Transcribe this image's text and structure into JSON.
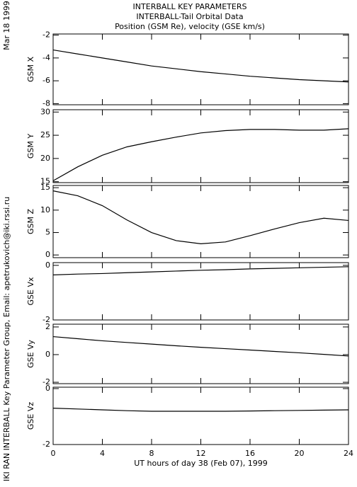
{
  "title_lines": [
    "INTERBALL KEY PARAMETERS",
    "INTERBALL-Tail Orbital Data",
    "Position (GSM Re), velocity (GSE km/s)"
  ],
  "date": "Mar 18 1999",
  "credit": "IKI RAN INTERBALL Key Parameter Group, Email: apetrukovich@iki.rssi.ru",
  "chart_data": [
    {
      "type": "line",
      "ylabel": "GSM X",
      "color": "#000000",
      "x": [
        0,
        2,
        4,
        6,
        8,
        10,
        12,
        14,
        16,
        18,
        20,
        22,
        24
      ],
      "values": [
        -3.3,
        -3.65,
        -4.0,
        -4.35,
        -4.7,
        -4.95,
        -5.2,
        -5.4,
        -5.6,
        -5.75,
        -5.9,
        -6.0,
        -6.1
      ],
      "ylim": [
        -8.1,
        -1.9
      ],
      "yticks": [
        -2,
        -4,
        -6,
        -8
      ]
    },
    {
      "type": "line",
      "ylabel": "GSM Y",
      "color": "#000000",
      "x": [
        0,
        2,
        4,
        6,
        8,
        10,
        12,
        14,
        16,
        18,
        20,
        22,
        24
      ],
      "values": [
        15.2,
        18.2,
        20.7,
        22.5,
        23.6,
        24.6,
        25.5,
        26.0,
        26.25,
        26.25,
        26.1,
        26.1,
        26.4
      ],
      "ylim": [
        14.8,
        30.5
      ],
      "yticks": [
        15,
        20,
        25,
        30
      ]
    },
    {
      "type": "line",
      "ylabel": "GSM Z",
      "color": "#000000",
      "x": [
        0,
        2,
        4,
        6,
        8,
        10,
        12,
        14,
        16,
        18,
        20,
        22,
        24
      ],
      "values": [
        14.3,
        13.2,
        11.0,
        7.8,
        5.0,
        3.2,
        2.5,
        2.9,
        4.3,
        5.8,
        7.2,
        8.2,
        7.7
      ],
      "ylim": [
        -0.6,
        15.5
      ],
      "yticks": [
        0,
        5,
        10,
        15
      ]
    },
    {
      "type": "line",
      "ylabel": "GSE Vx",
      "color": "#000000",
      "x": [
        0,
        2,
        4,
        6,
        8,
        10,
        12,
        14,
        16,
        18,
        20,
        22,
        24
      ],
      "values": [
        -0.35,
        -0.32,
        -0.3,
        -0.27,
        -0.24,
        -0.21,
        -0.18,
        -0.16,
        -0.13,
        -0.11,
        -0.09,
        -0.07,
        -0.05
      ],
      "ylim": [
        -2,
        0.1
      ],
      "yticks": [
        -2,
        0
      ]
    },
    {
      "type": "line",
      "ylabel": "GSE Vy",
      "color": "#000000",
      "x": [
        0,
        2,
        4,
        6,
        8,
        10,
        12,
        14,
        16,
        18,
        20,
        22,
        24
      ],
      "values": [
        1.3,
        1.15,
        1.0,
        0.88,
        0.76,
        0.64,
        0.53,
        0.43,
        0.33,
        0.23,
        0.13,
        0.02,
        -0.1
      ],
      "ylim": [
        -2.1,
        2.2
      ],
      "yticks": [
        -2,
        0,
        2
      ]
    },
    {
      "type": "line",
      "ylabel": "GSE Vz",
      "color": "#000000",
      "x": [
        0,
        2,
        4,
        6,
        8,
        10,
        12,
        14,
        16,
        18,
        20,
        22,
        24
      ],
      "values": [
        -0.7,
        -0.73,
        -0.76,
        -0.79,
        -0.81,
        -0.81,
        -0.81,
        -0.81,
        -0.8,
        -0.79,
        -0.78,
        -0.77,
        -0.76
      ],
      "ylim": [
        -2,
        0.05
      ],
      "yticks": [
        -2,
        0
      ],
      "xlabel": "UT hours of day  38 (Feb 07), 1999",
      "xlim": [
        0,
        24
      ],
      "xticks": [
        0,
        4,
        8,
        12,
        16,
        20,
        24
      ]
    }
  ]
}
